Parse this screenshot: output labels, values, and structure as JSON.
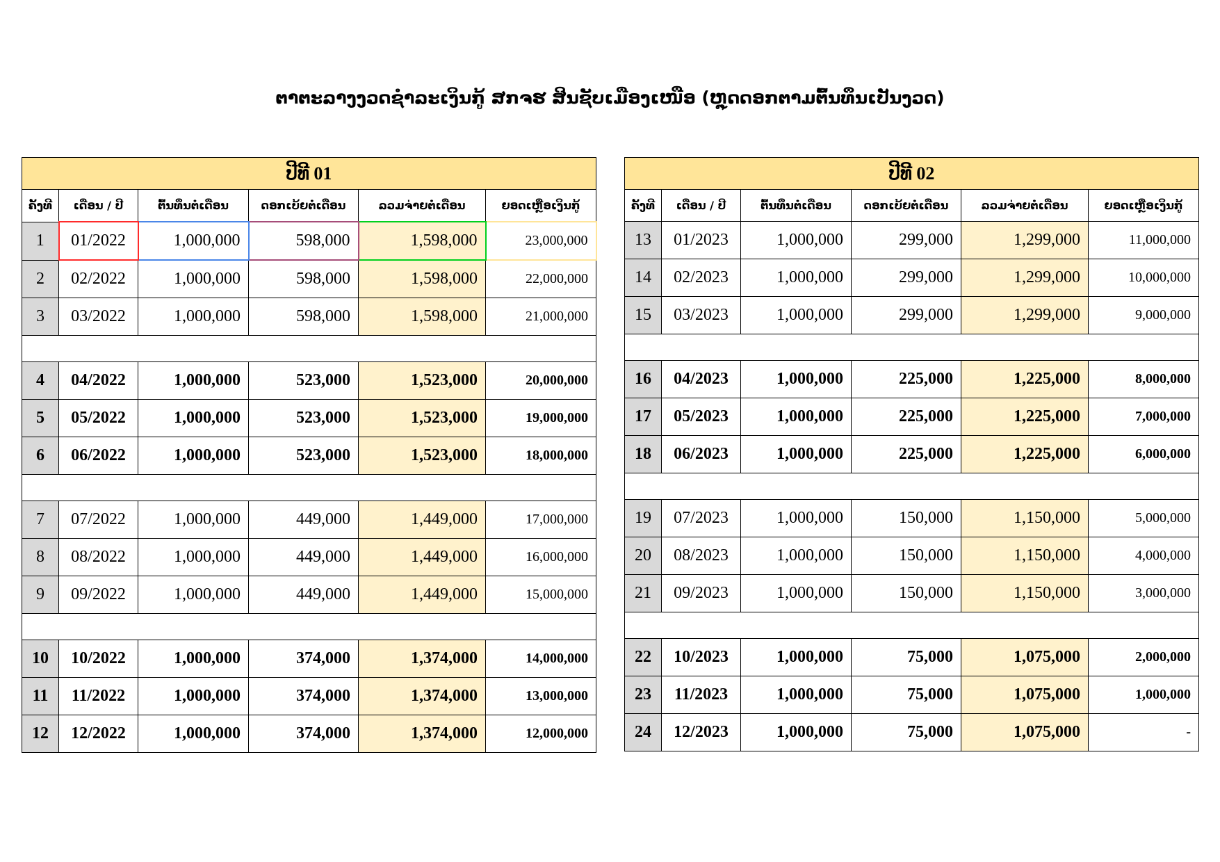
{
  "title": "ຕາຕະລາງງວດຊຳລະເງິນກູ້ ສກຈຮ ສິນຊັບເມືອງເໜືອ (ຫຼຸດດອກຕາມຕົ້ນທຶນເປັນງວດ)",
  "columns": [
    "ຄັ້ງທີ",
    "ເດືອນ / ປີ",
    "ຕົ້ນທຶນຕໍ່ເດືອນ",
    "ດອກເບ້ຍຕໍ່ເດືອນ",
    "ລວມຈ່າຍຕໍ່ເດືອນ",
    "ຍອດເຫຼືອເງິນກູ້"
  ],
  "tables": [
    {
      "year_label": "ປີທີ 01",
      "groups": [
        {
          "bold": false,
          "highlight_first": true,
          "rows": [
            {
              "no": "1",
              "month": "01/2022",
              "principal": "1,000,000",
              "interest": "598,000",
              "payment": "1,598,000",
              "balance": "23,000,000"
            },
            {
              "no": "2",
              "month": "02/2022",
              "principal": "1,000,000",
              "interest": "598,000",
              "payment": "1,598,000",
              "balance": "22,000,000"
            },
            {
              "no": "3",
              "month": "03/2022",
              "principal": "1,000,000",
              "interest": "598,000",
              "payment": "1,598,000",
              "balance": "21,000,000"
            }
          ]
        },
        {
          "bold": true,
          "highlight_first": false,
          "rows": [
            {
              "no": "4",
              "month": "04/2022",
              "principal": "1,000,000",
              "interest": "523,000",
              "payment": "1,523,000",
              "balance": "20,000,000"
            },
            {
              "no": "5",
              "month": "05/2022",
              "principal": "1,000,000",
              "interest": "523,000",
              "payment": "1,523,000",
              "balance": "19,000,000"
            },
            {
              "no": "6",
              "month": "06/2022",
              "principal": "1,000,000",
              "interest": "523,000",
              "payment": "1,523,000",
              "balance": "18,000,000"
            }
          ]
        },
        {
          "bold": false,
          "highlight_first": false,
          "rows": [
            {
              "no": "7",
              "month": "07/2022",
              "principal": "1,000,000",
              "interest": "449,000",
              "payment": "1,449,000",
              "balance": "17,000,000"
            },
            {
              "no": "8",
              "month": "08/2022",
              "principal": "1,000,000",
              "interest": "449,000",
              "payment": "1,449,000",
              "balance": "16,000,000"
            },
            {
              "no": "9",
              "month": "09/2022",
              "principal": "1,000,000",
              "interest": "449,000",
              "payment": "1,449,000",
              "balance": "15,000,000"
            }
          ]
        },
        {
          "bold": true,
          "highlight_first": false,
          "rows": [
            {
              "no": "10",
              "month": "10/2022",
              "principal": "1,000,000",
              "interest": "374,000",
              "payment": "1,374,000",
              "balance": "14,000,000"
            },
            {
              "no": "11",
              "month": "11/2022",
              "principal": "1,000,000",
              "interest": "374,000",
              "payment": "1,374,000",
              "balance": "13,000,000"
            },
            {
              "no": "12",
              "month": "12/2022",
              "principal": "1,000,000",
              "interest": "374,000",
              "payment": "1,374,000",
              "balance": "12,000,000"
            }
          ]
        }
      ]
    },
    {
      "year_label": "ປີທີ 02",
      "groups": [
        {
          "bold": false,
          "highlight_first": false,
          "rows": [
            {
              "no": "13",
              "month": "01/2023",
              "principal": "1,000,000",
              "interest": "299,000",
              "payment": "1,299,000",
              "balance": "11,000,000"
            },
            {
              "no": "14",
              "month": "02/2023",
              "principal": "1,000,000",
              "interest": "299,000",
              "payment": "1,299,000",
              "balance": "10,000,000"
            },
            {
              "no": "15",
              "month": "03/2023",
              "principal": "1,000,000",
              "interest": "299,000",
              "payment": "1,299,000",
              "balance": "9,000,000"
            }
          ]
        },
        {
          "bold": true,
          "highlight_first": false,
          "rows": [
            {
              "no": "16",
              "month": "04/2023",
              "principal": "1,000,000",
              "interest": "225,000",
              "payment": "1,225,000",
              "balance": "8,000,000"
            },
            {
              "no": "17",
              "month": "05/2023",
              "principal": "1,000,000",
              "interest": "225,000",
              "payment": "1,225,000",
              "balance": "7,000,000"
            },
            {
              "no": "18",
              "month": "06/2023",
              "principal": "1,000,000",
              "interest": "225,000",
              "payment": "1,225,000",
              "balance": "6,000,000"
            }
          ]
        },
        {
          "bold": false,
          "highlight_first": false,
          "rows": [
            {
              "no": "19",
              "month": "07/2023",
              "principal": "1,000,000",
              "interest": "150,000",
              "payment": "1,150,000",
              "balance": "5,000,000"
            },
            {
              "no": "20",
              "month": "08/2023",
              "principal": "1,000,000",
              "interest": "150,000",
              "payment": "1,150,000",
              "balance": "4,000,000"
            },
            {
              "no": "21",
              "month": "09/2023",
              "principal": "1,000,000",
              "interest": "150,000",
              "payment": "1,150,000",
              "balance": "3,000,000"
            }
          ]
        },
        {
          "bold": true,
          "highlight_first": false,
          "rows": [
            {
              "no": "22",
              "month": "10/2023",
              "principal": "1,000,000",
              "interest": "75,000",
              "payment": "1,075,000",
              "balance": "2,000,000"
            },
            {
              "no": "23",
              "month": "11/2023",
              "principal": "1,000,000",
              "interest": "75,000",
              "payment": "1,075,000",
              "balance": "1,000,000"
            },
            {
              "no": "24",
              "month": "12/2023",
              "principal": "1,000,000",
              "interest": "75,000",
              "payment": "1,075,000",
              "balance": "-"
            }
          ]
        }
      ]
    }
  ]
}
